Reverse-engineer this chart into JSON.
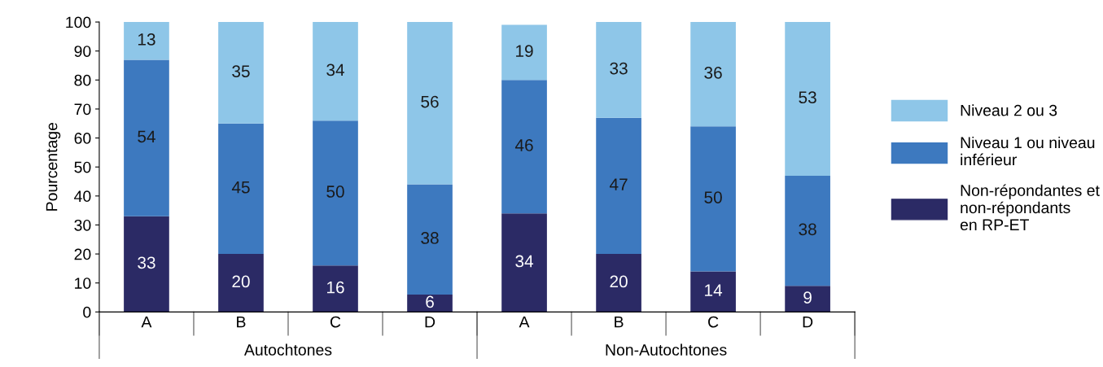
{
  "chart_data": {
    "type": "bar",
    "stacked": true,
    "ylabel": "Pourcentage",
    "categories": [
      "A",
      "B",
      "C",
      "D",
      "A",
      "B",
      "C",
      "D"
    ],
    "series": [
      {
        "name": "Non-répondantes et\nnon-répondants\nen RP-ET",
        "color": "#2b2a65",
        "values": [
          33,
          20,
          16,
          6,
          34,
          20,
          14,
          9
        ]
      },
      {
        "name": "Niveau 1 ou niveau\ninférieur",
        "color": "#3d79bf",
        "values": [
          54,
          45,
          50,
          38,
          46,
          47,
          50,
          38
        ]
      },
      {
        "name": "Niveau 2 ou 3",
        "color": "#8ec6e8",
        "values": [
          13,
          35,
          34,
          56,
          19,
          33,
          36,
          53
        ]
      }
    ],
    "annotations": [
      "Autochtones",
      "Non-Autochtones"
    ],
    "ylim": [
      0,
      100
    ],
    "yticks": [
      0,
      10,
      20,
      30,
      40,
      50,
      60,
      70,
      80,
      90,
      100
    ],
    "data_labels": true,
    "legend": "right",
    "grid": false
  }
}
